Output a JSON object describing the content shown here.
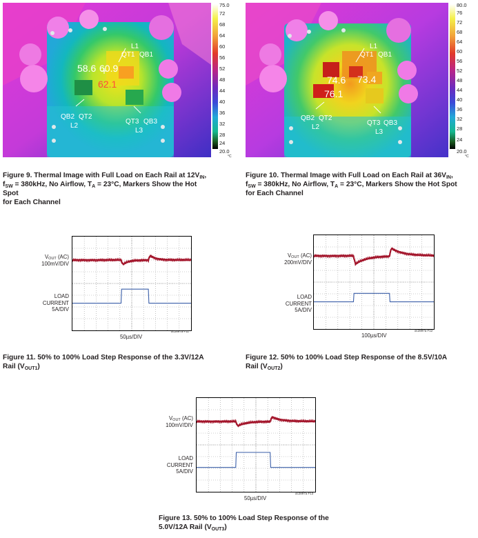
{
  "fig9": {
    "scale_max": "75.0",
    "scale_min": "20.0",
    "scale_ticks": [
      "72",
      "68",
      "64",
      "60",
      "56",
      "52",
      "48",
      "44",
      "40",
      "36",
      "32",
      "28",
      "24"
    ],
    "unit": "°C",
    "markers": [
      "58.6",
      "60.9",
      "62.1"
    ],
    "labels": {
      "l1": "L1",
      "qt1": "QT1",
      "qb1": "QB1",
      "qb2": "QB2",
      "qt2": "QT2",
      "l2": "L2",
      "qt3": "QT3",
      "qb3": "QB3",
      "l3": "L3"
    },
    "caption_line1": "Figure 9. Thermal Image with Full Load on Each Rail at 12V",
    "caption_line1_sub": "IN",
    "caption_line1_end": ",",
    "caption_line2_a": "f",
    "caption_line2_sub1": "SW",
    "caption_line2_b": " = 380kHz, No Airflow, T",
    "caption_line2_sub2": "A",
    "caption_line2_c": " = 23°C, Markers Show the Hot Spot",
    "caption_line3": "for Each Channel"
  },
  "fig10": {
    "scale_max": "80.0",
    "scale_min": "20.0",
    "scale_ticks": [
      "76",
      "72",
      "68",
      "64",
      "60",
      "56",
      "52",
      "48",
      "44",
      "40",
      "36",
      "32",
      "28",
      "24"
    ],
    "unit": "°C",
    "markers": [
      "74.6",
      "73.4",
      "76.1"
    ],
    "labels": {
      "l1": "L1",
      "qt1": "QT1",
      "qb1": "QB1",
      "qb2": "QB2",
      "qt2": "QT2",
      "l2": "L2",
      "qt3": "QT3",
      "qb3": "QB3",
      "l3": "L3"
    },
    "caption_line1": "Figure 10. Thermal Image with Full Load on Each Rail at 36V",
    "caption_line1_sub": "IN",
    "caption_line1_end": ",",
    "caption_line2_a": "f",
    "caption_line2_sub1": "SW",
    "caption_line2_b": " = 380kHz, No Airflow, T",
    "caption_line2_sub2": "A",
    "caption_line2_c": " = 23°C, Markers Show the Hot Spot",
    "caption_line3": "for Each Channel"
  },
  "fig11": {
    "vout_a": "V",
    "vout_sub": "OUT",
    "vout_b": " (AC)",
    "vout_scale": "100mV/DIV",
    "load_l1": "LOAD",
    "load_l2": "CURRENT",
    "load_l3": "5A/DIV",
    "timebase": "50µs/DIV",
    "fig_id": "dc2897a F11",
    "caption_a": "Figure 11. 50% to 100% Load Step Response of the 3.3V/12A",
    "caption_b": "Rail (V",
    "caption_sub": "OUT1",
    "caption_c": ")"
  },
  "fig12": {
    "vout_a": "V",
    "vout_sub": "OUT",
    "vout_b": " (AC)",
    "vout_scale": "200mV/DIV",
    "load_l1": "LOAD",
    "load_l2": "CURRENT",
    "load_l3": "5A/DIV",
    "timebase": "100µs/DIV",
    "fig_id": "dc2897a F12",
    "caption_a": "Figure 12. 50% to 100% Load Step Response of the 8.5V/10A",
    "caption_b": "Rail (V",
    "caption_sub": "OUT2",
    "caption_c": ")"
  },
  "fig13": {
    "vout_a": "V",
    "vout_sub": "OUT",
    "vout_b": " (AC)",
    "vout_scale": "100mV/DIV",
    "load_l1": "LOAD",
    "load_l2": "CURRENT",
    "load_l3": "5A/DIV",
    "timebase": "50µs/DIV",
    "fig_id": "dc2897a F13",
    "caption_a": "Figure 13. 50% to 100% Load Step Response of the",
    "caption_b": "5.0V/12A Rail (V",
    "caption_sub": "OUT3",
    "caption_c": ")"
  },
  "colors": {
    "vout_trace": "#a3152b",
    "current_trace": "#3a5ea8",
    "grid": "#9a9a9a"
  }
}
